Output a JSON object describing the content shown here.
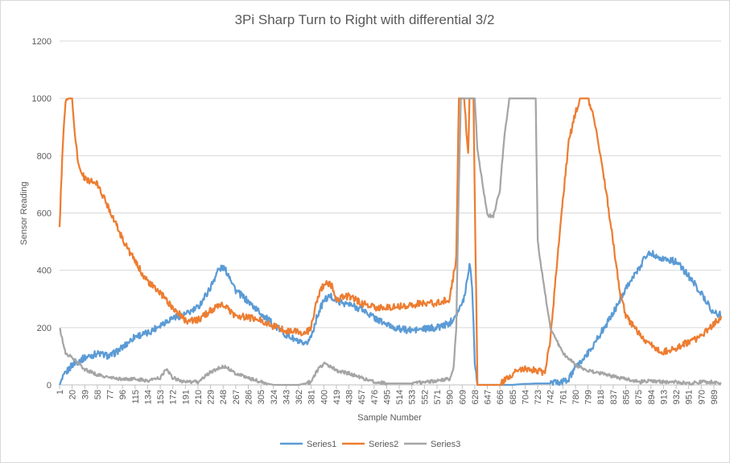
{
  "chart_data": {
    "type": "line",
    "title": "3Pi Sharp Turn to Right with differential 3/2",
    "xlabel": "Sample Number",
    "ylabel": "Sensor Reading",
    "ylim": [
      0,
      1200
    ],
    "xlim": [
      1,
      1000
    ],
    "y_ticks": [
      "0",
      "200",
      "400",
      "600",
      "800",
      "1000",
      "1200"
    ],
    "x_tick_labels": [
      "1",
      "20",
      "39",
      "58",
      "77",
      "96",
      "115",
      "134",
      "153",
      "172",
      "191",
      "210",
      "229",
      "248",
      "267",
      "286",
      "305",
      "324",
      "343",
      "362",
      "381",
      "400",
      "419",
      "438",
      "457",
      "476",
      "495",
      "514",
      "533",
      "552",
      "571",
      "590",
      "609",
      "628",
      "647",
      "666",
      "685",
      "704",
      "723",
      "742",
      "761",
      "780",
      "799",
      "818",
      "837",
      "856",
      "875",
      "894",
      "913",
      "932",
      "951",
      "970",
      "989"
    ],
    "grid": "horizontal",
    "legend_position": "bottom",
    "series": [
      {
        "name": "Series1",
        "color": "#5b9bd5",
        "points": [
          [
            1,
            0
          ],
          [
            10,
            40
          ],
          [
            20,
            70
          ],
          [
            39,
            95
          ],
          [
            58,
            110
          ],
          [
            77,
            100
          ],
          [
            96,
            130
          ],
          [
            115,
            170
          ],
          [
            134,
            180
          ],
          [
            153,
            210
          ],
          [
            172,
            235
          ],
          [
            191,
            245
          ],
          [
            210,
            270
          ],
          [
            229,
            340
          ],
          [
            240,
            400
          ],
          [
            248,
            410
          ],
          [
            258,
            380
          ],
          [
            267,
            330
          ],
          [
            286,
            290
          ],
          [
            305,
            250
          ],
          [
            324,
            210
          ],
          [
            343,
            175
          ],
          [
            362,
            150
          ],
          [
            371,
            135
          ],
          [
            381,
            170
          ],
          [
            390,
            240
          ],
          [
            400,
            295
          ],
          [
            410,
            310
          ],
          [
            419,
            295
          ],
          [
            438,
            280
          ],
          [
            457,
            265
          ],
          [
            476,
            235
          ],
          [
            495,
            210
          ],
          [
            514,
            195
          ],
          [
            533,
            190
          ],
          [
            552,
            195
          ],
          [
            571,
            200
          ],
          [
            590,
            215
          ],
          [
            600,
            250
          ],
          [
            609,
            280
          ],
          [
            614,
            330
          ],
          [
            620,
            425
          ],
          [
            624,
            350
          ],
          [
            628,
            80
          ],
          [
            632,
            0
          ],
          [
            647,
            0
          ],
          [
            666,
            0
          ],
          [
            685,
            0
          ],
          [
            700,
            3
          ],
          [
            723,
            5
          ],
          [
            742,
            5
          ],
          [
            761,
            10
          ],
          [
            770,
            20
          ],
          [
            780,
            60
          ],
          [
            799,
            110
          ],
          [
            818,
            180
          ],
          [
            837,
            250
          ],
          [
            856,
            340
          ],
          [
            875,
            400
          ],
          [
            885,
            450
          ],
          [
            894,
            460
          ],
          [
            913,
            440
          ],
          [
            932,
            430
          ],
          [
            951,
            380
          ],
          [
            970,
            320
          ],
          [
            989,
            250
          ],
          [
            1000,
            245
          ]
        ]
      },
      {
        "name": "Series2",
        "color": "#ed7d31",
        "points": [
          [
            1,
            540
          ],
          [
            5,
            800
          ],
          [
            10,
            990
          ],
          [
            15,
            1000
          ],
          [
            20,
            1000
          ],
          [
            24,
            880
          ],
          [
            30,
            760
          ],
          [
            39,
            720
          ],
          [
            58,
            700
          ],
          [
            77,
            610
          ],
          [
            96,
            510
          ],
          [
            115,
            430
          ],
          [
            134,
            360
          ],
          [
            153,
            320
          ],
          [
            172,
            270
          ],
          [
            191,
            225
          ],
          [
            210,
            225
          ],
          [
            229,
            260
          ],
          [
            248,
            280
          ],
          [
            267,
            240
          ],
          [
            286,
            235
          ],
          [
            305,
            225
          ],
          [
            324,
            205
          ],
          [
            343,
            190
          ],
          [
            362,
            185
          ],
          [
            371,
            175
          ],
          [
            381,
            200
          ],
          [
            390,
            300
          ],
          [
            400,
            350
          ],
          [
            410,
            355
          ],
          [
            419,
            300
          ],
          [
            438,
            310
          ],
          [
            457,
            285
          ],
          [
            476,
            270
          ],
          [
            495,
            270
          ],
          [
            514,
            275
          ],
          [
            533,
            280
          ],
          [
            552,
            285
          ],
          [
            571,
            285
          ],
          [
            590,
            300
          ],
          [
            600,
            440
          ],
          [
            604,
            1000
          ],
          [
            612,
            1000
          ],
          [
            618,
            800
          ],
          [
            620,
            1000
          ],
          [
            626,
            1000
          ],
          [
            628,
            650
          ],
          [
            632,
            0
          ],
          [
            647,
            0
          ],
          [
            666,
            0
          ],
          [
            675,
            20
          ],
          [
            685,
            40
          ],
          [
            704,
            60
          ],
          [
            723,
            50
          ],
          [
            733,
            40
          ],
          [
            742,
            150
          ],
          [
            751,
            400
          ],
          [
            761,
            650
          ],
          [
            770,
            850
          ],
          [
            780,
            950
          ],
          [
            787,
            1000
          ],
          [
            799,
            1000
          ],
          [
            806,
            950
          ],
          [
            818,
            800
          ],
          [
            828,
            650
          ],
          [
            837,
            500
          ],
          [
            846,
            340
          ],
          [
            856,
            240
          ],
          [
            875,
            180
          ],
          [
            894,
            140
          ],
          [
            913,
            115
          ],
          [
            932,
            130
          ],
          [
            951,
            150
          ],
          [
            970,
            170
          ],
          [
            989,
            215
          ],
          [
            1000,
            230
          ]
        ]
      },
      {
        "name": "Series3",
        "color": "#a5a5a5",
        "points": [
          [
            1,
            200
          ],
          [
            10,
            110
          ],
          [
            20,
            95
          ],
          [
            39,
            55
          ],
          [
            58,
            35
          ],
          [
            77,
            25
          ],
          [
            96,
            20
          ],
          [
            115,
            20
          ],
          [
            134,
            15
          ],
          [
            153,
            25
          ],
          [
            162,
            55
          ],
          [
            172,
            25
          ],
          [
            191,
            10
          ],
          [
            210,
            10
          ],
          [
            229,
            45
          ],
          [
            248,
            65
          ],
          [
            258,
            55
          ],
          [
            267,
            40
          ],
          [
            286,
            25
          ],
          [
            305,
            10
          ],
          [
            324,
            0
          ],
          [
            343,
            0
          ],
          [
            362,
            0
          ],
          [
            381,
            10
          ],
          [
            390,
            50
          ],
          [
            400,
            75
          ],
          [
            410,
            65
          ],
          [
            419,
            50
          ],
          [
            438,
            40
          ],
          [
            457,
            25
          ],
          [
            476,
            10
          ],
          [
            495,
            5
          ],
          [
            514,
            5
          ],
          [
            533,
            5
          ],
          [
            552,
            10
          ],
          [
            571,
            15
          ],
          [
            590,
            20
          ],
          [
            596,
            60
          ],
          [
            600,
            200
          ],
          [
            604,
            700
          ],
          [
            607,
            1000
          ],
          [
            609,
            1000
          ],
          [
            620,
            1000
          ],
          [
            628,
            1000
          ],
          [
            632,
            820
          ],
          [
            640,
            700
          ],
          [
            647,
            590
          ],
          [
            656,
            590
          ],
          [
            666,
            680
          ],
          [
            672,
            850
          ],
          [
            680,
            1000
          ],
          [
            690,
            1000
          ],
          [
            704,
            1000
          ],
          [
            720,
            1000
          ],
          [
            723,
            500
          ],
          [
            732,
            350
          ],
          [
            742,
            200
          ],
          [
            761,
            110
          ],
          [
            780,
            70
          ],
          [
            799,
            50
          ],
          [
            818,
            40
          ],
          [
            837,
            30
          ],
          [
            856,
            20
          ],
          [
            875,
            10
          ],
          [
            894,
            15
          ],
          [
            913,
            10
          ],
          [
            932,
            10
          ],
          [
            951,
            5
          ],
          [
            970,
            10
          ],
          [
            989,
            10
          ],
          [
            1000,
            5
          ]
        ]
      }
    ]
  }
}
